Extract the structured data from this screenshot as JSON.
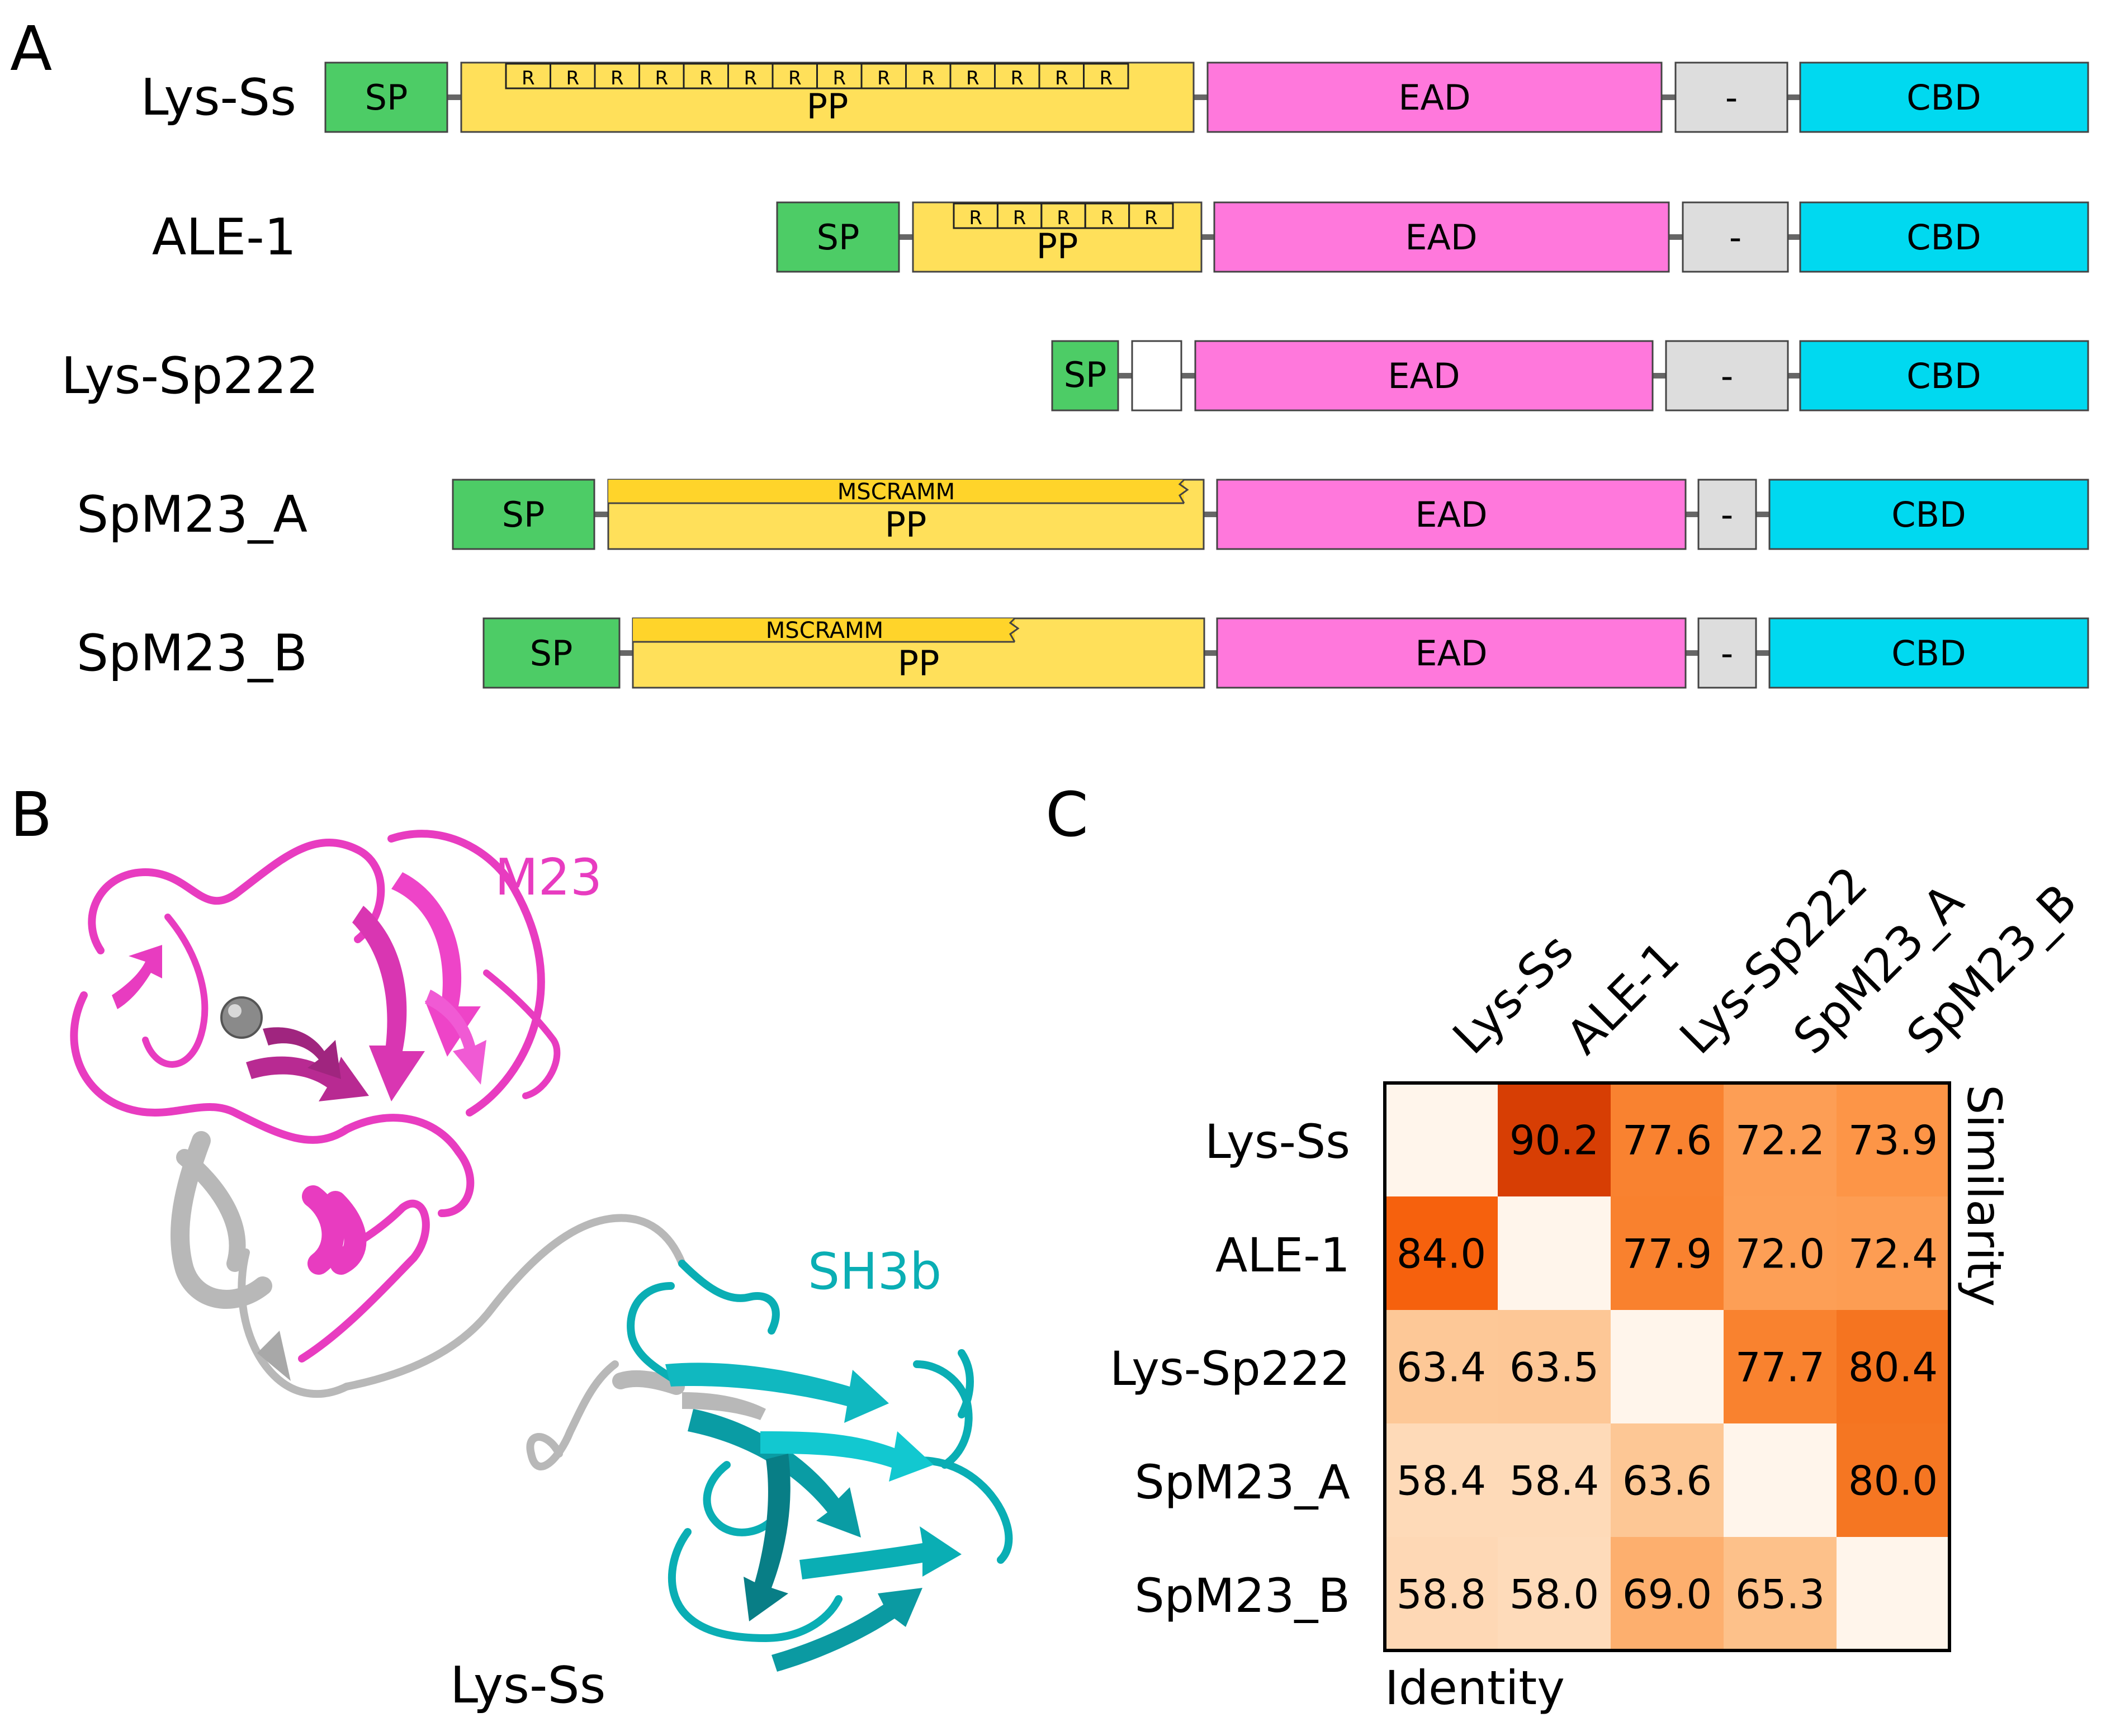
{
  "panels": {
    "a": "A",
    "b": "B",
    "c": "C"
  },
  "domains": {
    "sp": "SP",
    "pp": "PP",
    "ead": "EAD",
    "linker": "-",
    "cbd": "CBD",
    "repeat": "R",
    "mscramm": "MSCRAMM"
  },
  "domain_colors": {
    "sp": "#4dcc66",
    "pp": "#ffe05a",
    "ead": "#ff78dc",
    "linker": "#dddddd",
    "cbd": "#00d9f0",
    "mscramm": "#ffd42a",
    "empty": "#ffffff"
  },
  "proteins": [
    {
      "name": "Lys-Ss",
      "repeats": 14,
      "mscramm": false,
      "pp": true
    },
    {
      "name": "ALE-1",
      "repeats": 5,
      "mscramm": false,
      "pp": true
    },
    {
      "name": "Lys-Sp222",
      "repeats": 0,
      "mscramm": false,
      "pp": false
    },
    {
      "name": "SpM23_A",
      "repeats": 0,
      "mscramm": true,
      "pp": true
    },
    {
      "name": "SpM23_B",
      "repeats": 0,
      "mscramm": true,
      "pp": true
    }
  ],
  "structure": {
    "m23_label": "M23",
    "sh3b_label": "SH3b",
    "protein_label": "Lys-Ss",
    "m23_color": "#e83cc0",
    "sh3b_color": "#0aaeb4",
    "linker_color": "#b8b8b8"
  },
  "heatmap": {
    "labels": [
      "Lys-Ss",
      "ALE-1",
      "Lys-Sp222",
      "SpM23_A",
      "SpM23_B"
    ],
    "similarity_label": "Similarity",
    "identity_label": "Identity",
    "values": [
      [
        null,
        90.2,
        77.6,
        72.2,
        73.9
      ],
      [
        84.0,
        null,
        77.9,
        72.0,
        72.4
      ],
      [
        63.4,
        63.5,
        null,
        77.7,
        80.4
      ],
      [
        58.4,
        58.4,
        63.6,
        null,
        80.0
      ],
      [
        58.8,
        58.0,
        69.0,
        65.3,
        null
      ]
    ],
    "value_texts": [
      [
        "",
        "90.2",
        "77.6",
        "72.2",
        "73.9"
      ],
      [
        "84.0",
        "",
        "77.9",
        "72.0",
        "72.4"
      ],
      [
        "63.4",
        "63.5",
        "",
        "77.7",
        "80.4"
      ],
      [
        "58.4",
        "58.4",
        "63.6",
        "",
        "80.0"
      ],
      [
        "58.8",
        "58.0",
        "69.0",
        "65.3",
        ""
      ]
    ],
    "color_range": [
      55,
      92
    ]
  }
}
